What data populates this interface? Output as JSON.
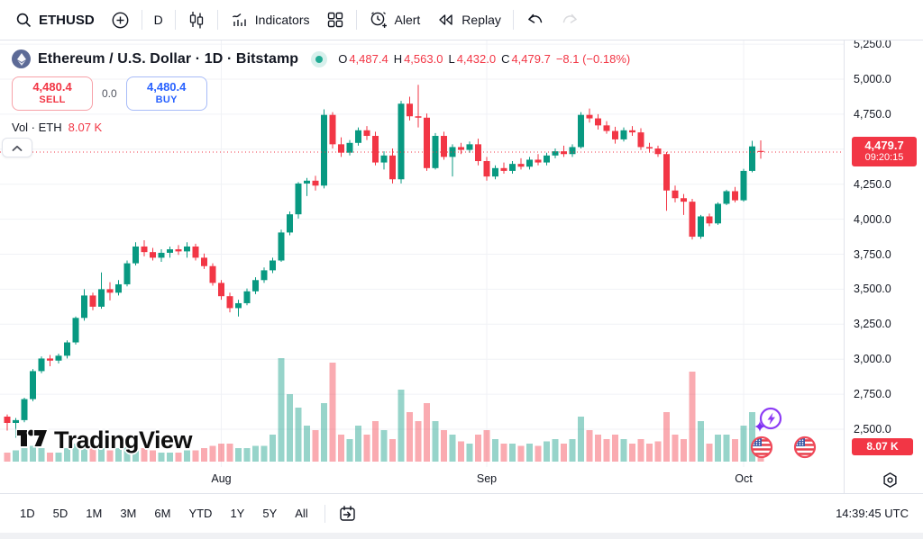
{
  "top_toolbar": {
    "symbol": "ETHUSD",
    "interval": "D",
    "indicators": "Indicators",
    "alert": "Alert",
    "replay": "Replay"
  },
  "legend": {
    "title": "Ethereum / U.S. Dollar · 1D · Bitstamp",
    "market_status": "open",
    "ohlc": {
      "o_label": "O",
      "o": "4,487.4",
      "h_label": "H",
      "h": "4,563.0",
      "l_label": "L",
      "l": "4,432.0",
      "c_label": "C",
      "c": "4,479.7",
      "change": "−8.1 (−0.18%)"
    },
    "sell_price": "4,480.4",
    "sell_label": "SELL",
    "spread": "0.0",
    "buy_price": "4,480.4",
    "buy_label": "BUY",
    "volume_label": "Vol · ETH",
    "volume_value": "8.07 K"
  },
  "watermark": {
    "logo": "17",
    "text": "TradingView"
  },
  "price_axis": {
    "last_price": "4,479.7",
    "countdown": "09:20:15",
    "volume_badge": "8.07 K"
  },
  "bottom_toolbar": {
    "ranges": [
      "1D",
      "5D",
      "1M",
      "3M",
      "6M",
      "YTD",
      "1Y",
      "5Y",
      "All"
    ],
    "clock": "14:39:45 UTC"
  },
  "colors": {
    "up": "#089981",
    "down": "#f23645",
    "vol_up": "rgba(8,153,129,0.42)",
    "vol_down": "rgba(242,54,69,0.42)",
    "grid": "#f0f2f6",
    "buy_blue": "#2962ff",
    "badge_red": "#f23645"
  },
  "chart_data": {
    "type": "candlestick",
    "title": "Ethereum / U.S. Dollar",
    "symbol": "ETHUSD",
    "exchange": "Bitstamp",
    "interval": "1D",
    "last_price": 4479.7,
    "last_change": -8.1,
    "last_change_pct": -0.18,
    "current_volume_k": 8.07,
    "volume_unit": "K",
    "ylim": [
      2400,
      5280
    ],
    "price_ticks": [
      5250,
      5000,
      4750,
      4500,
      4250,
      4000,
      3750,
      3500,
      3250,
      3000,
      2750,
      2500
    ],
    "month_ticks": [
      {
        "label": "Aug",
        "index": 25
      },
      {
        "label": "Sep",
        "index": 56
      },
      {
        "label": "Oct",
        "index": 86
      }
    ],
    "candles_format": [
      "open",
      "high",
      "low",
      "close",
      "volume_k"
    ],
    "candles": [
      [
        2590,
        2605,
        2490,
        2545,
        4
      ],
      [
        2545,
        2580,
        2440,
        2565,
        5
      ],
      [
        2565,
        2725,
        2550,
        2715,
        6
      ],
      [
        2715,
        2930,
        2700,
        2915,
        7
      ],
      [
        2915,
        3020,
        2900,
        3005,
        6
      ],
      [
        3005,
        3030,
        2950,
        2990,
        4
      ],
      [
        2990,
        3040,
        2970,
        3025,
        4
      ],
      [
        3025,
        3135,
        3005,
        3120,
        6
      ],
      [
        3120,
        3305,
        3105,
        3295,
        8
      ],
      [
        3295,
        3500,
        3275,
        3455,
        10
      ],
      [
        3455,
        3475,
        3350,
        3375,
        7
      ],
      [
        3375,
        3620,
        3360,
        3500,
        9
      ],
      [
        3500,
        3550,
        3420,
        3475,
        5
      ],
      [
        3475,
        3565,
        3455,
        3535,
        6
      ],
      [
        3535,
        3705,
        3520,
        3685,
        8
      ],
      [
        3685,
        3835,
        3670,
        3805,
        9
      ],
      [
        3805,
        3850,
        3735,
        3765,
        6
      ],
      [
        3765,
        3795,
        3705,
        3725,
        5
      ],
      [
        3725,
        3785,
        3695,
        3760,
        4
      ],
      [
        3760,
        3805,
        3725,
        3785,
        4
      ],
      [
        3785,
        3815,
        3745,
        3770,
        4
      ],
      [
        3770,
        3835,
        3725,
        3805,
        5
      ],
      [
        3805,
        3825,
        3705,
        3725,
        5
      ],
      [
        3725,
        3755,
        3645,
        3665,
        6
      ],
      [
        3665,
        3685,
        3525,
        3545,
        7
      ],
      [
        3545,
        3565,
        3425,
        3450,
        8
      ],
      [
        3450,
        3475,
        3335,
        3365,
        8
      ],
      [
        3365,
        3425,
        3305,
        3400,
        6
      ],
      [
        3400,
        3505,
        3385,
        3485,
        6
      ],
      [
        3485,
        3585,
        3465,
        3565,
        7
      ],
      [
        3565,
        3655,
        3545,
        3635,
        7
      ],
      [
        3635,
        3725,
        3615,
        3705,
        12
      ],
      [
        3705,
        3925,
        3695,
        3905,
        46
      ],
      [
        3905,
        4055,
        3885,
        4035,
        30
      ],
      [
        4035,
        4265,
        4005,
        4255,
        24
      ],
      [
        4255,
        4295,
        4165,
        4275,
        16
      ],
      [
        4275,
        4310,
        4205,
        4240,
        14
      ],
      [
        4240,
        4785,
        4220,
        4745,
        26
      ],
      [
        4745,
        4765,
        4505,
        4535,
        44
      ],
      [
        4535,
        4585,
        4445,
        4475,
        12
      ],
      [
        4475,
        4565,
        4455,
        4545,
        10
      ],
      [
        4545,
        4655,
        4525,
        4635,
        16
      ],
      [
        4635,
        4665,
        4565,
        4595,
        12
      ],
      [
        4595,
        4625,
        4385,
        4405,
        18
      ],
      [
        4405,
        4485,
        4355,
        4455,
        14
      ],
      [
        4455,
        4505,
        4255,
        4285,
        10
      ],
      [
        4285,
        4845,
        4255,
        4825,
        32
      ],
      [
        4825,
        4875,
        4705,
        4735,
        22
      ],
      [
        4735,
        4960,
        4655,
        4725,
        18
      ],
      [
        4725,
        4755,
        4345,
        4365,
        26
      ],
      [
        4365,
        4615,
        4355,
        4595,
        18
      ],
      [
        4595,
        4625,
        4425,
        4445,
        14
      ],
      [
        4445,
        4535,
        4305,
        4515,
        12
      ],
      [
        4515,
        4545,
        4465,
        4495,
        9
      ],
      [
        4495,
        4555,
        4475,
        4535,
        8
      ],
      [
        4535,
        4575,
        4385,
        4415,
        12
      ],
      [
        4415,
        4445,
        4275,
        4305,
        14
      ],
      [
        4305,
        4385,
        4285,
        4365,
        10
      ],
      [
        4365,
        4405,
        4325,
        4345,
        8
      ],
      [
        4345,
        4415,
        4325,
        4395,
        8
      ],
      [
        4395,
        4435,
        4355,
        4375,
        7
      ],
      [
        4375,
        4445,
        4355,
        4425,
        8
      ],
      [
        4425,
        4465,
        4385,
        4405,
        7
      ],
      [
        4405,
        4475,
        4385,
        4455,
        9
      ],
      [
        4455,
        4505,
        4435,
        4485,
        10
      ],
      [
        4485,
        4525,
        4445,
        4465,
        8
      ],
      [
        4465,
        4535,
        4445,
        4515,
        10
      ],
      [
        4515,
        4765,
        4505,
        4745,
        20
      ],
      [
        4745,
        4790,
        4690,
        4720,
        14
      ],
      [
        4720,
        4750,
        4640,
        4670,
        12
      ],
      [
        4670,
        4700,
        4610,
        4630,
        10
      ],
      [
        4630,
        4660,
        4540,
        4570,
        12
      ],
      [
        4570,
        4655,
        4555,
        4635,
        10
      ],
      [
        4635,
        4665,
        4595,
        4620,
        8
      ],
      [
        4620,
        4650,
        4495,
        4515,
        10
      ],
      [
        4515,
        4545,
        4475,
        4505,
        8
      ],
      [
        4505,
        4525,
        4445,
        4465,
        9
      ],
      [
        4465,
        4480,
        4060,
        4205,
        22
      ],
      [
        4205,
        4240,
        4120,
        4150,
        12
      ],
      [
        4150,
        4180,
        4030,
        4125,
        10
      ],
      [
        4125,
        4145,
        3855,
        3875,
        40
      ],
      [
        3875,
        4030,
        3860,
        4020,
        18
      ],
      [
        4020,
        4040,
        3950,
        3970,
        8
      ],
      [
        3970,
        4120,
        3960,
        4110,
        12
      ],
      [
        4110,
        4210,
        4100,
        4200,
        12
      ],
      [
        4200,
        4230,
        4120,
        4135,
        10
      ],
      [
        4135,
        4360,
        4125,
        4345,
        16
      ],
      [
        4345,
        4560,
        4335,
        4520,
        22
      ],
      [
        4487.4,
        4563,
        4432,
        4479.7,
        8.07
      ]
    ]
  }
}
